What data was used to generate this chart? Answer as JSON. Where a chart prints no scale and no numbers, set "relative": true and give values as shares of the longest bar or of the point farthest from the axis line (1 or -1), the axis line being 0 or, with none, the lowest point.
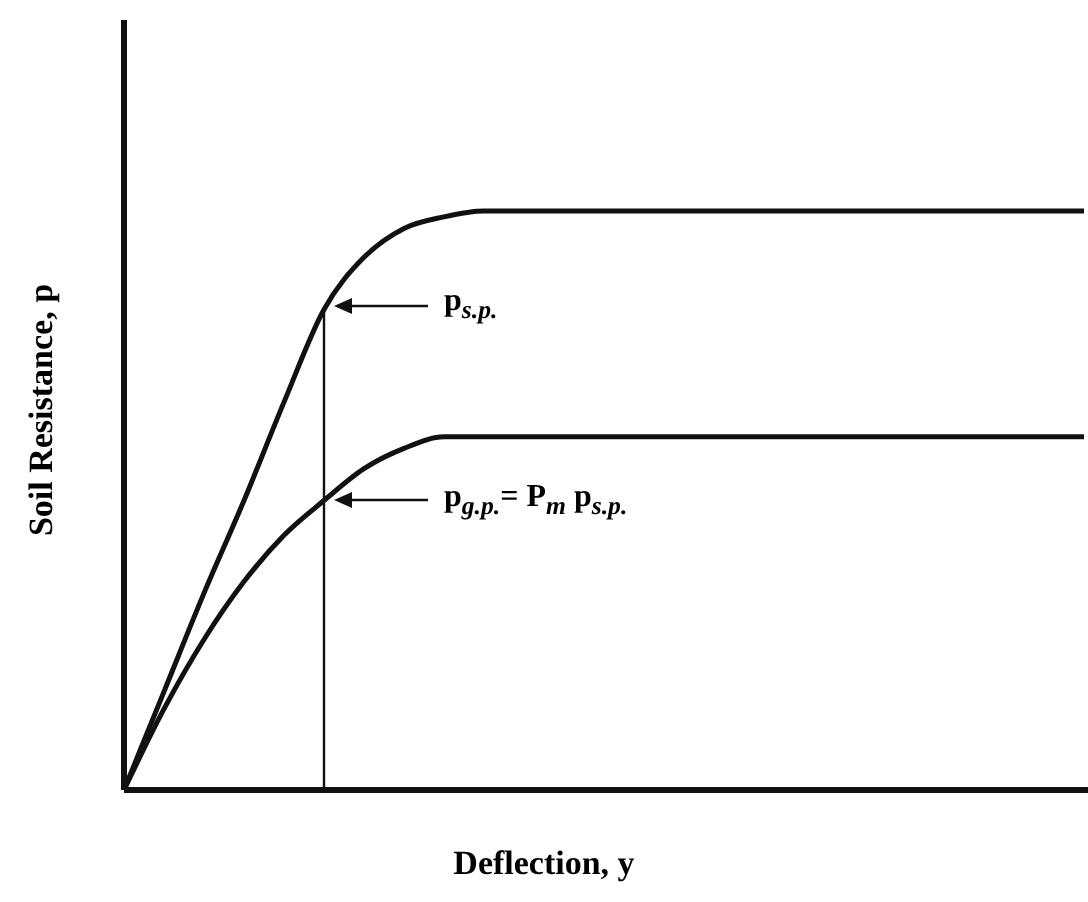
{
  "chart_data": {
    "type": "line",
    "relative": true,
    "xlabel": "Deflection, y",
    "ylabel": "Soil Resistance, p",
    "categories": [
      null,
      null,
      null,
      null,
      null,
      null,
      null,
      null,
      null,
      null,
      null,
      null,
      null,
      null,
      null,
      null,
      null,
      null,
      null,
      null,
      null,
      null,
      null,
      null,
      null
    ],
    "series": [
      {
        "color": "#111111",
        "values": [
          0,
          0.17,
          0.34,
          0.5,
          0.67,
          0.83,
          0.92,
          0.97,
          0.99,
          1,
          1,
          1,
          1,
          1,
          1,
          1,
          1,
          1,
          1,
          1,
          1,
          1,
          1,
          1,
          1
        ]
      },
      {
        "color": "#111111",
        "values": [
          0,
          0.14,
          0.26,
          0.36,
          0.44,
          0.5,
          0.555,
          0.59,
          0.61,
          0.61,
          0.61,
          0.61,
          0.61,
          0.61,
          0.61,
          0.61,
          0.61,
          0.61,
          0.61,
          0.61,
          0.61,
          0.61,
          0.61,
          0.61,
          0.61
        ]
      }
    ],
    "annotations": [
      "p$_{s.p.}$",
      "p$_{g.p.}$= P$_{m}$ p$_{s.p.}$"
    ],
    "legend": false,
    "grid": false,
    "marker": "none",
    "line_style": "solid"
  }
}
